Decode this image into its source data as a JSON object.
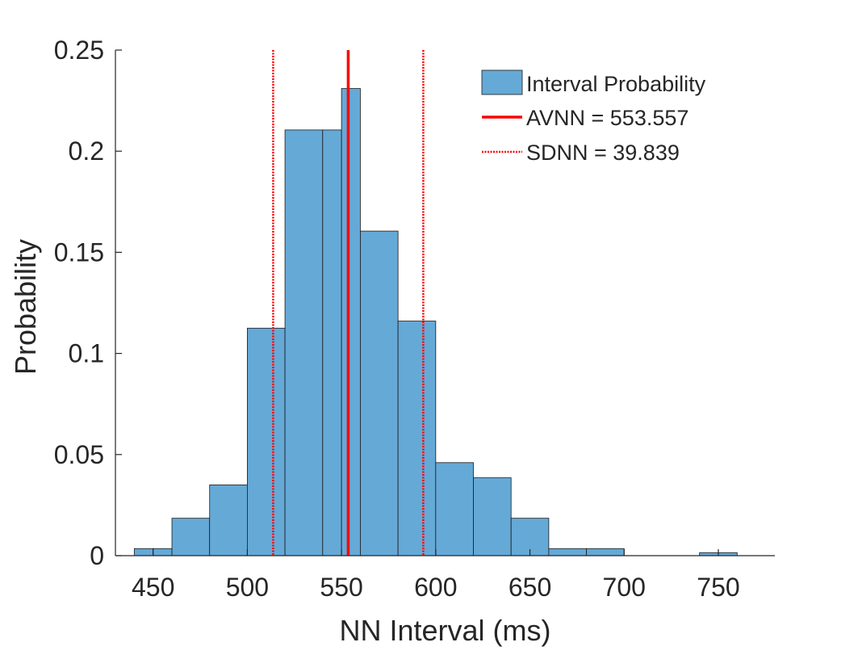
{
  "chart_data": {
    "type": "bar",
    "title": "",
    "xlabel": "NN Interval (ms)",
    "ylabel": "Probability",
    "xlim": [
      430,
      780
    ],
    "ylim": [
      0,
      0.25
    ],
    "xticks": [
      "450",
      "500",
      "550",
      "600",
      "650",
      "700",
      "750"
    ],
    "xtick_values": [
      450,
      500,
      550,
      600,
      650,
      700,
      750
    ],
    "yticks": [
      "0",
      "0.05",
      "0.1",
      "0.15",
      "0.2",
      "0.25"
    ],
    "ytick_values": [
      0,
      0.05,
      0.1,
      0.15,
      0.2,
      0.25
    ],
    "grid": false,
    "legend_position": "top-right",
    "bins": [
      {
        "x0": 440,
        "x1": 450,
        "value": 0.0035
      },
      {
        "x0": 450,
        "x1": 460,
        "value": 0.0035
      },
      {
        "x0": 460,
        "x1": 480,
        "value": 0.0185
      },
      {
        "x0": 480,
        "x1": 500,
        "value": 0.035
      },
      {
        "x0": 500,
        "x1": 520,
        "value": 0.1125
      },
      {
        "x0": 520,
        "x1": 540,
        "value": 0.2105
      },
      {
        "x0": 540,
        "x1": 550,
        "value": 0.2105
      },
      {
        "x0": 550,
        "x1": 560,
        "value": 0.231
      },
      {
        "x0": 560,
        "x1": 580,
        "value": 0.1605
      },
      {
        "x0": 580,
        "x1": 600,
        "value": 0.116
      },
      {
        "x0": 600,
        "x1": 620,
        "value": 0.046
      },
      {
        "x0": 620,
        "x1": 640,
        "value": 0.0385
      },
      {
        "x0": 640,
        "x1": 660,
        "value": 0.0185
      },
      {
        "x0": 660,
        "x1": 680,
        "value": 0.0035
      },
      {
        "x0": 680,
        "x1": 700,
        "value": 0.0035
      },
      {
        "x0": 740,
        "x1": 750,
        "value": 0.0015
      },
      {
        "x0": 750,
        "x1": 760,
        "value": 0.0015
      }
    ],
    "bar_color": "#65a9d7",
    "vertical_lines": [
      {
        "x": 553.557,
        "style": "solid",
        "color": "#ff0000"
      },
      {
        "x": 513.718,
        "style": "dotted",
        "color": "#ff0000"
      },
      {
        "x": 593.396,
        "style": "dotted",
        "color": "#ff0000"
      }
    ],
    "legend": [
      {
        "label": "Interval Probability",
        "kind": "patch",
        "color": "#65a9d7"
      },
      {
        "label": "AVNN = 553.557",
        "kind": "solid-line",
        "color": "#ff0000"
      },
      {
        "label": "SDNN = 39.839",
        "kind": "dotted-line",
        "color": "#ff0000"
      }
    ]
  }
}
